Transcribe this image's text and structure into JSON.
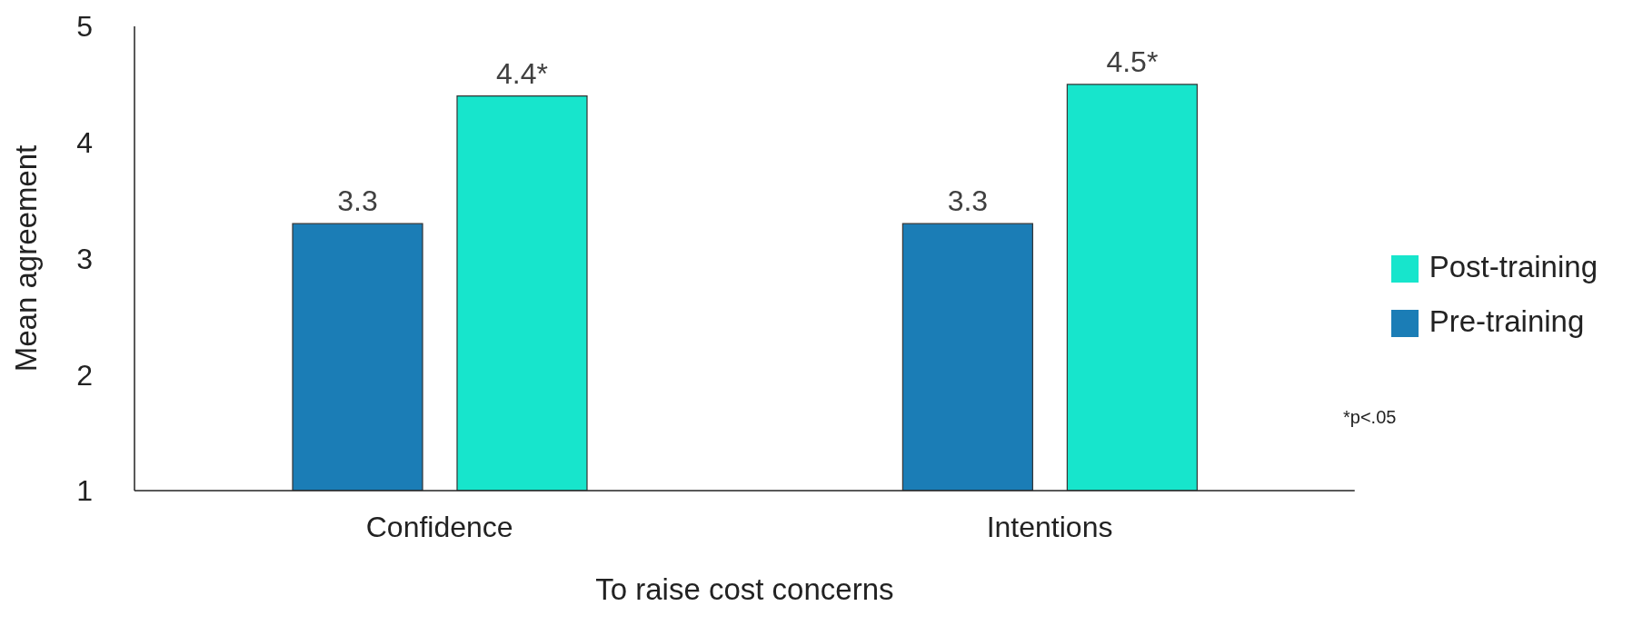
{
  "chart_data": {
    "type": "bar",
    "xlabel": "To raise cost concerns",
    "ylabel": "Mean agreement",
    "categories": [
      "Confidence",
      "Intentions"
    ],
    "series": [
      {
        "name": "Pre-training",
        "color": "#1b7db6",
        "values": [
          3.3,
          3.3
        ],
        "value_labels": [
          "3.3",
          "3.3"
        ]
      },
      {
        "name": "Post-training",
        "color": "#17e5cc",
        "values": [
          4.4,
          4.5
        ],
        "value_labels": [
          "4.4*",
          "4.5*"
        ]
      }
    ],
    "ylim": [
      1,
      5
    ],
    "yticks": [
      1,
      2,
      3,
      4,
      5
    ],
    "grid": false,
    "legend": "right",
    "annotations": [
      "*p<.05"
    ]
  }
}
